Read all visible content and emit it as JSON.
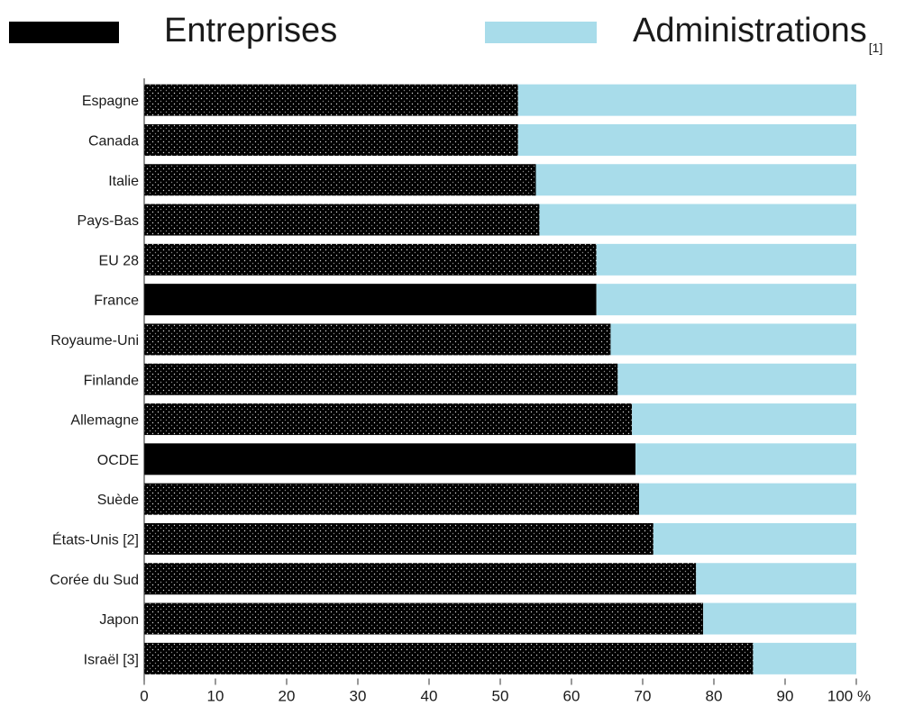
{
  "legend": {
    "entreprises": "Entreprises",
    "administrations": "Administrations",
    "administrations_note": "[1]"
  },
  "colors": {
    "entreprises": "#000000",
    "administrations": "#a8dcea",
    "grid": "#ffffff"
  },
  "chart_data": {
    "type": "bar",
    "orientation": "horizontal",
    "stacked": true,
    "categories": [
      "Espagne",
      "Canada",
      "Italie",
      "Pays-Bas",
      "EU 28",
      "France",
      "Royaume-Uni",
      "Finlande",
      "Allemagne",
      "OCDE",
      "Suède",
      "États-Unis [2]",
      "Corée du Sud",
      "Japon",
      "Israël [3]"
    ],
    "series": [
      {
        "name": "Entreprises",
        "values": [
          52.5,
          52.5,
          55,
          55.5,
          63.5,
          63.5,
          65.5,
          66.5,
          68.5,
          69,
          69.5,
          71.5,
          77.5,
          78.5,
          85.5
        ]
      },
      {
        "name": "Administrations",
        "values": [
          47.5,
          47.5,
          45,
          44.5,
          36.5,
          36.5,
          34.5,
          33.5,
          31.5,
          31,
          30.5,
          28.5,
          22.5,
          21.5,
          14.5
        ]
      }
    ],
    "patterned": [
      true,
      true,
      true,
      true,
      true,
      false,
      true,
      true,
      true,
      false,
      true,
      true,
      true,
      true,
      true
    ],
    "x_ticks": [
      "0",
      "10",
      "20",
      "30",
      "40",
      "50",
      "60",
      "70",
      "80",
      "90",
      "100 %"
    ],
    "xlim": [
      0,
      100
    ],
    "grid": true
  }
}
